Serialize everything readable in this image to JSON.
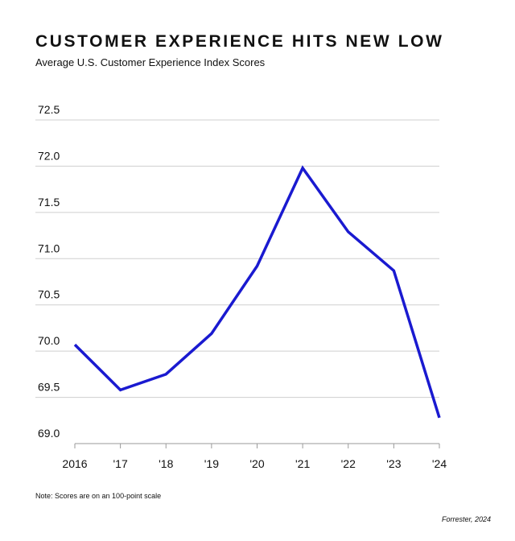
{
  "chart_data": {
    "type": "line",
    "title": "CUSTOMER EXPERIENCE HITS NEW LOW",
    "subtitle": "Average U.S. Customer Experience Index Scores",
    "categories": [
      "2016",
      "'17",
      "'18",
      "'19",
      "'20",
      "'21",
      "'22",
      "'23",
      "'24"
    ],
    "series": [
      {
        "values": [
          70.07,
          69.58,
          69.75,
          70.19,
          70.92,
          71.98,
          71.29,
          70.87,
          69.28
        ]
      }
    ],
    "y_ticks": [
      "72.5",
      "72.0",
      "71.5",
      "71.0",
      "70.5",
      "70.0",
      "69.5",
      "69.0"
    ],
    "ylim": [
      69.0,
      72.5
    ],
    "grid": true,
    "legend": "none",
    "colors": {
      "line": "#1a1ad0",
      "grid": "#cfcfcf",
      "axis": "#9a9a9a"
    }
  },
  "note": "Note: Scores are on an 100-point scale",
  "source": "Forrester, 2024"
}
